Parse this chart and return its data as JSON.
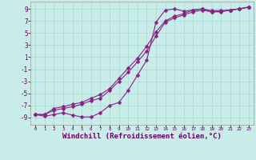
{
  "bg_color": "#c8ece8",
  "grid_color": "#aad8d0",
  "line_color": "#882288",
  "marker": "D",
  "markersize": 2.5,
  "linewidth": 0.8,
  "xlabel": "Windchill (Refroidissement éolien,°C)",
  "xlabel_fontsize": 6.5,
  "tick_fontsize": 6,
  "xlim": [
    -0.5,
    23.5
  ],
  "ylim": [
    -10.2,
    10.2
  ],
  "yticks": [
    -9,
    -7,
    -5,
    -3,
    -1,
    1,
    3,
    5,
    7,
    9
  ],
  "xticks": [
    0,
    1,
    2,
    3,
    4,
    5,
    6,
    7,
    8,
    9,
    10,
    11,
    12,
    13,
    14,
    15,
    16,
    17,
    18,
    19,
    20,
    21,
    22,
    23
  ],
  "line1_x": [
    0,
    1,
    2,
    3,
    4,
    5,
    6,
    7,
    8,
    9,
    10,
    11,
    12,
    13,
    14,
    15,
    16,
    17,
    18,
    19,
    20,
    21,
    22,
    23
  ],
  "line1_y": [
    -8.5,
    -8.8,
    -8.5,
    -8.2,
    -8.6,
    -8.9,
    -8.9,
    -8.2,
    -7.0,
    -6.5,
    -4.5,
    -2.0,
    0.5,
    6.8,
    8.8,
    9.0,
    8.6,
    8.8,
    9.0,
    8.7,
    8.7,
    8.8,
    9.0,
    9.3
  ],
  "line2_x": [
    0,
    1,
    2,
    3,
    4,
    5,
    6,
    7,
    8,
    9,
    10,
    11,
    12,
    13,
    14,
    15,
    16,
    17,
    18,
    19,
    20,
    21,
    22,
    23
  ],
  "line2_y": [
    -8.5,
    -8.5,
    -7.8,
    -7.5,
    -7.2,
    -6.8,
    -6.2,
    -5.8,
    -4.5,
    -3.0,
    -1.5,
    0.2,
    2.0,
    4.5,
    6.8,
    7.5,
    8.0,
    8.5,
    8.8,
    8.5,
    8.6,
    8.8,
    9.0,
    9.3
  ],
  "line3_x": [
    0,
    1,
    2,
    3,
    4,
    5,
    6,
    7,
    8,
    9,
    10,
    11,
    12,
    13,
    14,
    15,
    16,
    17,
    18,
    19,
    20,
    21,
    22,
    23
  ],
  "line3_y": [
    -8.5,
    -8.5,
    -7.5,
    -7.2,
    -6.8,
    -6.5,
    -5.8,
    -5.2,
    -4.2,
    -2.5,
    -0.8,
    0.8,
    2.8,
    5.2,
    7.0,
    7.8,
    8.2,
    8.8,
    9.0,
    8.5,
    8.5,
    8.8,
    9.0,
    9.3
  ]
}
